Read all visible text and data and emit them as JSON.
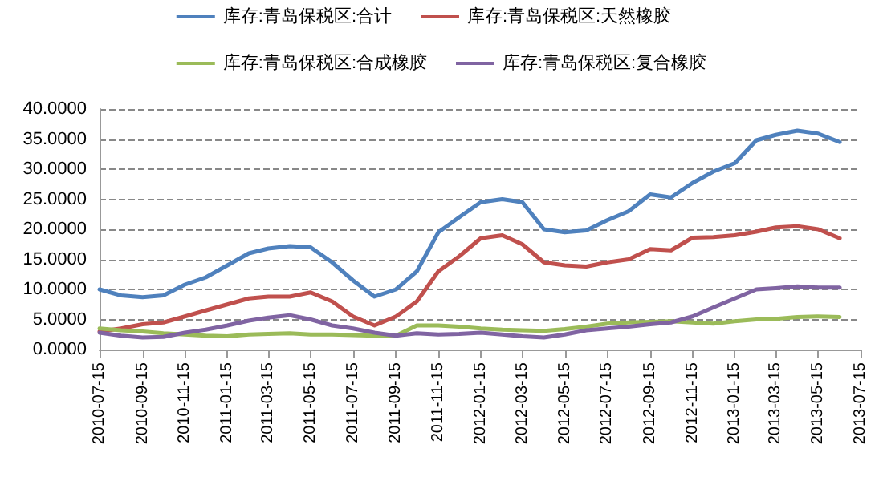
{
  "chart_data": {
    "type": "line",
    "legend": "top",
    "grid": "y",
    "line_style": "solid",
    "marker": "none",
    "x": [
      "2010-07-15",
      "2010-08-15",
      "2010-09-15",
      "2010-10-15",
      "2010-11-15",
      "2010-12-15",
      "2011-01-15",
      "2011-02-15",
      "2011-03-15",
      "2011-04-15",
      "2011-05-15",
      "2011-06-15",
      "2011-07-15",
      "2011-08-15",
      "2011-09-15",
      "2011-10-15",
      "2011-11-15",
      "2011-12-15",
      "2012-01-15",
      "2012-02-15",
      "2012-03-15",
      "2012-04-15",
      "2012-05-15",
      "2012-06-15",
      "2012-07-15",
      "2012-08-15",
      "2012-09-15",
      "2012-10-15",
      "2012-11-15",
      "2012-12-15",
      "2013-01-15",
      "2013-02-15",
      "2013-03-15",
      "2013-04-15",
      "2013-05-15",
      "2013-06-15"
    ],
    "series": [
      {
        "name": "库存:青岛保税区:合计",
        "color": "#4f81bd",
        "values": [
          10,
          9,
          8.7,
          9,
          10.8,
          12,
          14,
          16,
          16.8,
          17.2,
          17,
          14.5,
          11.5,
          8.8,
          10,
          13,
          19.5,
          22,
          24.5,
          25,
          24.5,
          20,
          19.5,
          19.8,
          21.5,
          23,
          25.8,
          25.3,
          27.7,
          29.6,
          31,
          34.8,
          35.7,
          36.4,
          35.9,
          34.5
        ]
      },
      {
        "name": "库存:青岛保税区:天然橡胶",
        "color": "#c0504d",
        "values": [
          3,
          3.5,
          4.2,
          4.5,
          5.5,
          6.5,
          7.5,
          8.5,
          8.8,
          8.8,
          9.5,
          8,
          5.5,
          4,
          5.5,
          8,
          13,
          15.5,
          18.5,
          19,
          17.5,
          14.5,
          14,
          13.8,
          14.5,
          15,
          16.7,
          16.5,
          18.6,
          18.7,
          19,
          19.6,
          20.3,
          20.5,
          20,
          18.5
        ]
      },
      {
        "name": "库存:青岛保税区:合成橡胶",
        "color": "#9bbb59",
        "values": [
          3.5,
          3.2,
          3,
          2.7,
          2.5,
          2.3,
          2.2,
          2.5,
          2.6,
          2.7,
          2.5,
          2.5,
          2.4,
          2.3,
          2.3,
          4,
          4,
          3.8,
          3.5,
          3.3,
          3.2,
          3.1,
          3.4,
          3.8,
          4.3,
          4.5,
          4.6,
          4.7,
          4.5,
          4.3,
          4.7,
          5,
          5.1,
          5.4,
          5.5,
          5.4
        ]
      },
      {
        "name": "库存:青岛保税区:复合橡胶",
        "color": "#8064a2",
        "values": [
          2.8,
          2.3,
          2,
          2.1,
          2.8,
          3.3,
          4,
          4.8,
          5.3,
          5.7,
          5,
          4,
          3.5,
          2.8,
          2.3,
          2.7,
          2.5,
          2.6,
          2.8,
          2.5,
          2.2,
          2,
          2.5,
          3.2,
          3.5,
          3.8,
          4.2,
          4.5,
          5.5,
          7,
          8.5,
          10,
          10.2,
          10.5,
          10.3,
          10.3
        ]
      }
    ],
    "ylim": [
      0,
      40
    ],
    "yticks": [
      {
        "value": 0,
        "label": "0.0000"
      },
      {
        "value": 5,
        "label": "5.0000"
      },
      {
        "value": 10,
        "label": "10.0000"
      },
      {
        "value": 15,
        "label": "15.0000"
      },
      {
        "value": 20,
        "label": "20.0000"
      },
      {
        "value": 25,
        "label": "25.0000"
      },
      {
        "value": 30,
        "label": "30.0000"
      },
      {
        "value": 35,
        "label": "35.0000"
      },
      {
        "value": 40,
        "label": "40.0000"
      }
    ],
    "xlim": [
      "2010-07-15",
      "2013-07-15"
    ],
    "xticks": [
      "2010-07-15",
      "2010-09-15",
      "2010-11-15",
      "2011-01-15",
      "2011-03-15",
      "2011-05-15",
      "2011-07-15",
      "2011-09-15",
      "2011-11-15",
      "2012-01-15",
      "2012-03-15",
      "2012-05-15",
      "2012-07-15",
      "2012-09-15",
      "2012-11-15",
      "2013-01-15",
      "2013-03-15",
      "2013-05-15",
      "2013-07-15"
    ]
  }
}
